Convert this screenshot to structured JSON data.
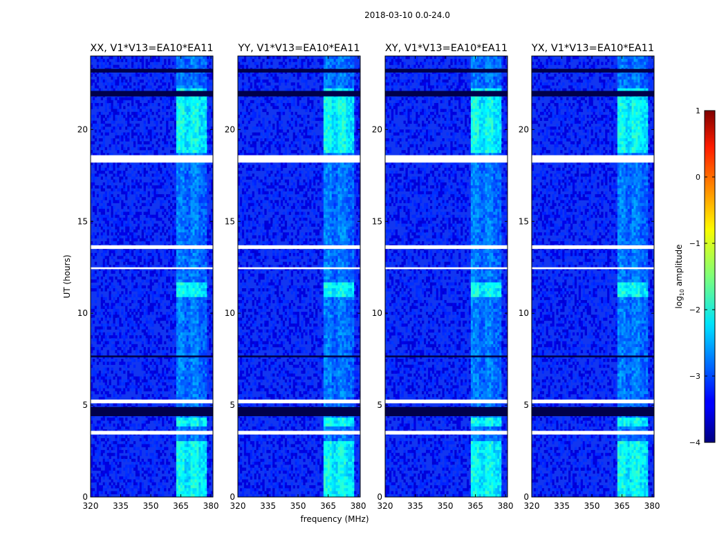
{
  "figure_title": "2018-03-10 0.0-24.0",
  "xlabel": "frequency (MHz)",
  "ylabel": "UT (hours)",
  "colorbar": {
    "label_prefix": "log",
    "label_sub": "10",
    "label_suffix": " amplitude",
    "ticks": [
      1,
      0,
      -1,
      -2,
      -3,
      -4
    ],
    "tick_labels": [
      "1",
      "0",
      "−1",
      "−2",
      "−3",
      "−4"
    ],
    "range": [
      -4,
      1
    ],
    "colormap": "jet"
  },
  "chart_data": [
    {
      "type": "heatmap",
      "title": "XX, V1*V13=EA10*EA11",
      "xlim": [
        320,
        381
      ],
      "ylim": [
        0,
        24
      ],
      "x_ticks": [
        320,
        335,
        350,
        365,
        380
      ],
      "x_tick_labels": [
        "320",
        "335",
        "350",
        "365",
        "380"
      ],
      "y_ticks": [
        0,
        5,
        10,
        15,
        20
      ],
      "y_tick_labels": [
        "0",
        "5",
        "10",
        "15",
        "20"
      ],
      "rfi_band_mhz": [
        362.5,
        378
      ],
      "strong_periods_hours": [
        [
          18.8,
          22.3
        ],
        [
          10.8,
          11.7
        ],
        [
          3.9,
          4.3
        ],
        [
          0,
          3.0
        ]
      ],
      "flagged_rows_hours": [
        [
          18.2,
          18.6
        ],
        [
          13.5,
          13.7
        ],
        [
          12.4,
          12.5
        ],
        [
          5.1,
          5.3
        ],
        [
          3.4,
          3.6
        ]
      ],
      "dark_rows_hours": [
        [
          4.4,
          4.9
        ],
        [
          21.8,
          22.1
        ],
        [
          23.1,
          23.3
        ],
        [
          7.6,
          7.7
        ]
      ]
    },
    {
      "type": "heatmap",
      "title": "YY, V1*V13=EA10*EA11",
      "xlim": [
        320,
        381
      ],
      "ylim": [
        0,
        24
      ],
      "x_ticks": [
        320,
        335,
        350,
        365,
        380
      ],
      "x_tick_labels": [
        "320",
        "335",
        "350",
        "365",
        "380"
      ],
      "y_ticks": [
        0,
        5,
        10,
        15,
        20
      ],
      "y_tick_labels": [
        "0",
        "5",
        "10",
        "15",
        "20"
      ],
      "rfi_band_mhz": [
        362.5,
        378
      ],
      "strong_periods_hours": [
        [
          18.8,
          22.3
        ],
        [
          10.8,
          11.7
        ],
        [
          3.9,
          4.3
        ],
        [
          0,
          3.0
        ]
      ],
      "flagged_rows_hours": [
        [
          18.2,
          18.6
        ],
        [
          13.5,
          13.7
        ],
        [
          12.4,
          12.5
        ],
        [
          5.1,
          5.3
        ],
        [
          3.4,
          3.6
        ]
      ],
      "dark_rows_hours": [
        [
          4.4,
          4.9
        ],
        [
          21.8,
          22.1
        ],
        [
          23.1,
          23.3
        ],
        [
          7.6,
          7.7
        ]
      ]
    },
    {
      "type": "heatmap",
      "title": "XY, V1*V13=EA10*EA11",
      "xlim": [
        320,
        381
      ],
      "ylim": [
        0,
        24
      ],
      "x_ticks": [
        320,
        335,
        350,
        365,
        380
      ],
      "x_tick_labels": [
        "320",
        "335",
        "350",
        "365",
        "380"
      ],
      "y_ticks": [
        0,
        5,
        10,
        15,
        20
      ],
      "y_tick_labels": [
        "0",
        "5",
        "10",
        "15",
        "20"
      ],
      "rfi_band_mhz": [
        362.5,
        378
      ],
      "strong_periods_hours": [
        [
          18.8,
          22.3
        ],
        [
          10.8,
          11.7
        ],
        [
          3.9,
          4.3
        ],
        [
          0,
          3.0
        ]
      ],
      "flagged_rows_hours": [
        [
          18.2,
          18.6
        ],
        [
          13.5,
          13.7
        ],
        [
          12.4,
          12.5
        ],
        [
          5.1,
          5.3
        ],
        [
          3.4,
          3.6
        ]
      ],
      "dark_rows_hours": [
        [
          4.4,
          4.9
        ],
        [
          21.8,
          22.1
        ],
        [
          23.1,
          23.3
        ],
        [
          7.6,
          7.7
        ]
      ]
    },
    {
      "type": "heatmap",
      "title": "YX, V1*V13=EA10*EA11",
      "xlim": [
        320,
        381
      ],
      "ylim": [
        0,
        24
      ],
      "x_ticks": [
        320,
        335,
        350,
        365,
        380
      ],
      "x_tick_labels": [
        "320",
        "335",
        "350",
        "365",
        "380"
      ],
      "y_ticks": [
        0,
        5,
        10,
        15,
        20
      ],
      "y_tick_labels": [
        "0",
        "5",
        "10",
        "15",
        "20"
      ],
      "rfi_band_mhz": [
        362.5,
        378
      ],
      "strong_periods_hours": [
        [
          18.8,
          22.3
        ],
        [
          10.8,
          11.7
        ],
        [
          3.9,
          4.3
        ],
        [
          0,
          3.0
        ]
      ],
      "flagged_rows_hours": [
        [
          18.2,
          18.6
        ],
        [
          13.5,
          13.7
        ],
        [
          12.4,
          12.5
        ],
        [
          5.1,
          5.3
        ],
        [
          3.4,
          3.6
        ]
      ],
      "dark_rows_hours": [
        [
          4.4,
          4.9
        ],
        [
          21.8,
          22.1
        ],
        [
          23.1,
          23.3
        ],
        [
          7.6,
          7.7
        ]
      ]
    }
  ]
}
